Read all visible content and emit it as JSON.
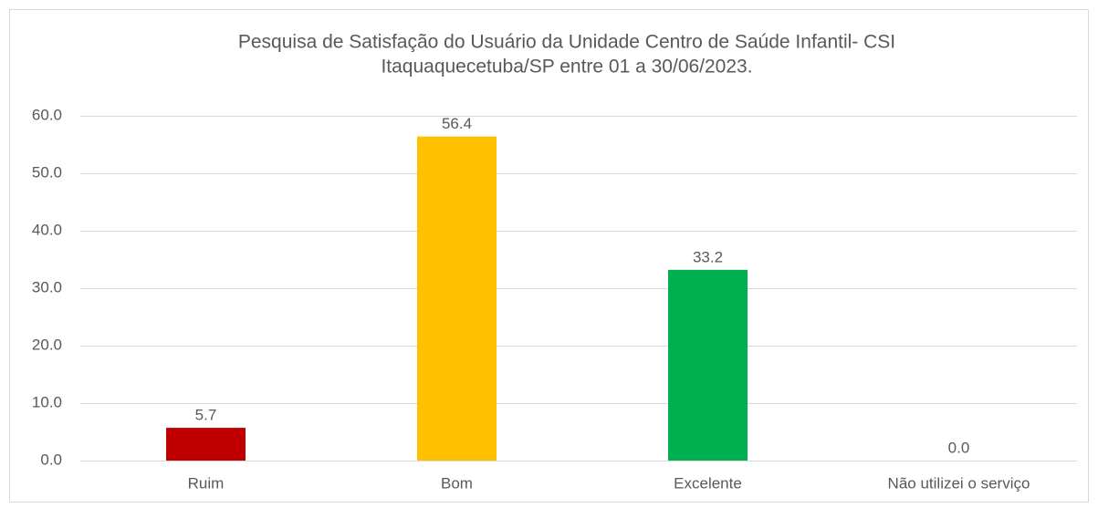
{
  "chart_data": {
    "type": "bar",
    "title": [
      "Pesquisa de Satisfação do Usuário da Unidade Centro de Saúde Infantil- CSI",
      "Itaquaquecetuba/SP entre 01 a 30/06/2023."
    ],
    "categories": [
      "Ruim",
      "Bom",
      "Excelente",
      "Não utilizei o serviço"
    ],
    "values": [
      5.7,
      56.4,
      33.2,
      0.0
    ],
    "value_labels": [
      "5.7",
      "56.4",
      "33.2",
      "0.0"
    ],
    "colors": [
      "#c00000",
      "#ffc000",
      "#00b050",
      "#4472c4"
    ],
    "ylim": [
      0,
      60
    ],
    "yticks": [
      {
        "value": 0,
        "label": "0.0"
      },
      {
        "value": 10,
        "label": "10.0"
      },
      {
        "value": 20,
        "label": "20.0"
      },
      {
        "value": 30,
        "label": "30.0"
      },
      {
        "value": 40,
        "label": "40.0"
      },
      {
        "value": 50,
        "label": "50.0"
      },
      {
        "value": 60,
        "label": "60.0"
      }
    ],
    "grid": true
  }
}
